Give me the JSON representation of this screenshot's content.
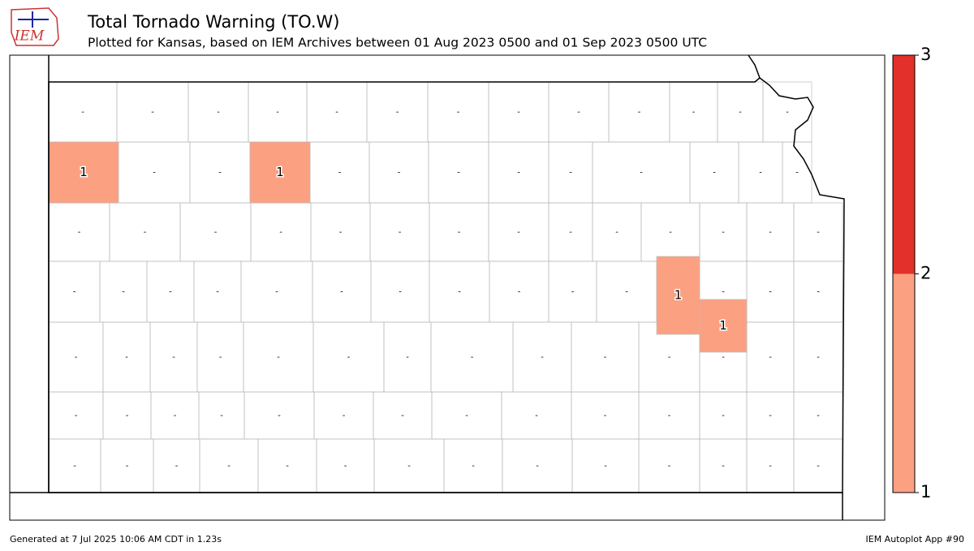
{
  "header": {
    "logo": "IEM",
    "title": "Total Tornado Warning (TO.W)",
    "subtitle": "Plotted for Kansas, based on IEM Archives  between 01 Aug 2023 0500 and 01 Sep 2023 0500 UTC"
  },
  "map": {
    "no_data_label": "-",
    "county_values": [
      1,
      1,
      1,
      1
    ]
  },
  "colorbar": {
    "ticks": [
      1,
      2,
      3
    ],
    "colors": [
      "#fca082",
      "#e3302a"
    ]
  },
  "footer": {
    "left": "Generated at 7 Jul 2025 10:06 AM CDT in 1.23s",
    "right": "IEM Autoplot App #90"
  }
}
